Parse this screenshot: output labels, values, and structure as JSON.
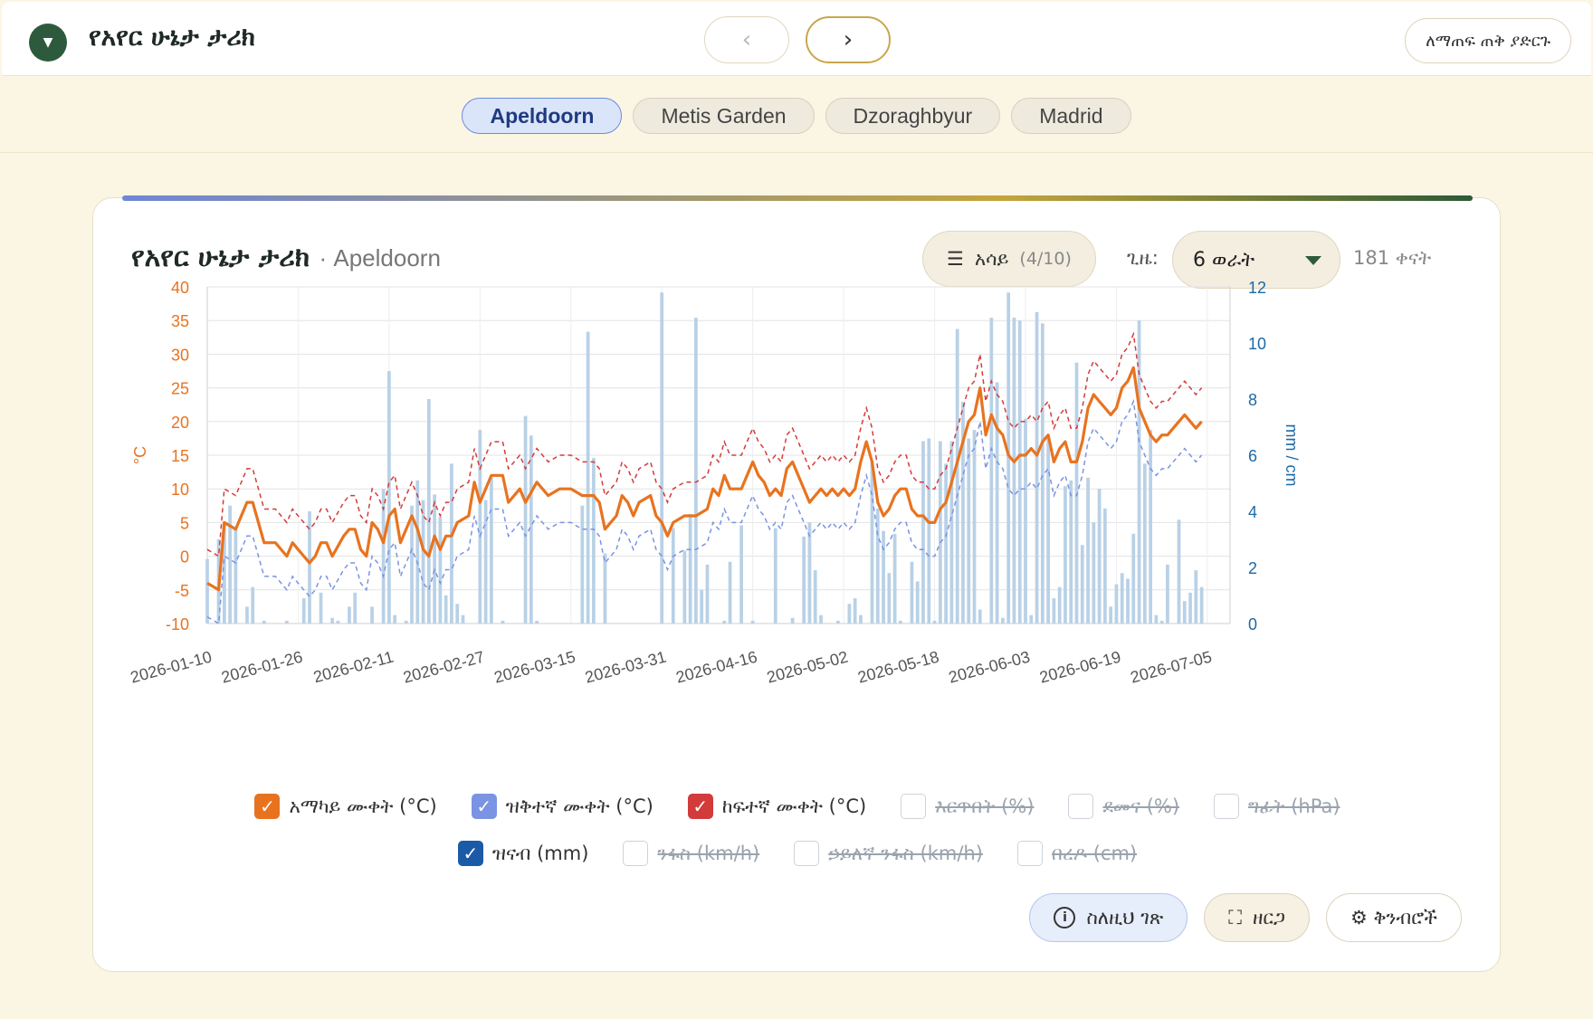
{
  "header": {
    "menu_icon": "chevron-down-icon",
    "title": "የአየር ሁኔታ ታሪክ",
    "prev_symbol": "‹",
    "next_symbol": "›",
    "close_label": "ለማጠፍ ጠቅ ያድርጉ"
  },
  "locations": [
    {
      "label": "Apeldoorn",
      "active": true
    },
    {
      "label": "Metis Garden",
      "active": false
    },
    {
      "label": "Dzoraghbyur",
      "active": false
    },
    {
      "label": "Madrid",
      "active": false
    }
  ],
  "card": {
    "title": "የአየር ሁኔታ ታሪክ",
    "subtitle": "· Apeldoorn",
    "series_button_label": "አሳይ",
    "series_count": "(4/10)",
    "time_label": "ጊዜ:",
    "time_value": "6 ወራት",
    "days_count": "181 ቀናት"
  },
  "legend": [
    {
      "label": "አማካይ ሙቀት (°C)",
      "checked": true,
      "color": "#e8731f"
    },
    {
      "label": "ዝቅተኛ ሙቀት (°C)",
      "checked": true,
      "color": "#7b93e3"
    },
    {
      "label": "ከፍተኛ ሙቀት (°C)",
      "checked": true,
      "color": "#d33b3b"
    },
    {
      "label": "እርጥበት (%)",
      "checked": false,
      "color": "#cdd3da"
    },
    {
      "label": "ደመና (%)",
      "checked": false,
      "color": "#cdd3da"
    },
    {
      "label": "ግፊት (hPa)",
      "checked": false,
      "color": "#cdd3da"
    },
    {
      "label": "ዝናብ (mm)",
      "checked": true,
      "color": "#1b5aa6"
    },
    {
      "label": "ንፋስ (km/h)",
      "checked": false,
      "color": "#cdd3da"
    },
    {
      "label": "ኃይለኛ ንፋስ (km/h)",
      "checked": false,
      "color": "#cdd3da"
    },
    {
      "label": "በረዶ (cm)",
      "checked": false,
      "color": "#cdd3da"
    }
  ],
  "actions": {
    "about_label": "ስለዚህ ገጽ",
    "expand_label": "ዘርጋ",
    "settings_label": "⚙ ቅንብሮች"
  },
  "colors": {
    "accent_green": "#2d5a3d",
    "temp_mean": "#e8731f",
    "temp_min": "#7b93e3",
    "temp_max": "#d33b3b",
    "precip": "#b9d1e6",
    "axis_left": "#e8731f",
    "axis_right": "#1b6aa8"
  },
  "chart_data": {
    "type": "line",
    "left_axis": {
      "label": "°C",
      "min": -10,
      "max": 40,
      "ticks": [
        40,
        35,
        30,
        25,
        20,
        15,
        10,
        5,
        0,
        -5,
        -10
      ]
    },
    "right_axis": {
      "label": "mm / cm",
      "min": 0,
      "max": 12,
      "ticks": [
        12,
        10,
        8,
        6,
        4,
        2,
        0
      ]
    },
    "x_tick_labels": [
      "2026-01-10",
      "2026-01-26",
      "2026-02-11",
      "2026-02-27",
      "2026-03-15",
      "2026-03-31",
      "2026-04-16",
      "2026-05-02",
      "2026-05-18",
      "2026-06-03",
      "2026-06-19",
      "2026-07-05"
    ],
    "x_start": "2026-01-10",
    "x_end": "2026-07-09",
    "days": 181,
    "series": [
      {
        "name": "አማካይ ሙቀት (°C)",
        "style": "solid",
        "keypoints": [
          [
            0,
            -4
          ],
          [
            2,
            -5
          ],
          [
            3,
            5
          ],
          [
            5,
            4
          ],
          [
            7,
            8
          ],
          [
            8,
            8
          ],
          [
            10,
            2
          ],
          [
            12,
            2
          ],
          [
            14,
            0
          ],
          [
            15,
            2
          ],
          [
            16,
            1
          ],
          [
            17,
            0
          ],
          [
            18,
            -1
          ],
          [
            19,
            0
          ],
          [
            20,
            2
          ],
          [
            21,
            2
          ],
          [
            22,
            0
          ],
          [
            24,
            3
          ],
          [
            25,
            4
          ],
          [
            26,
            4
          ],
          [
            27,
            1
          ],
          [
            28,
            0
          ],
          [
            29,
            5
          ],
          [
            30,
            4
          ],
          [
            31,
            2
          ],
          [
            32,
            6
          ],
          [
            33,
            7
          ],
          [
            34,
            2
          ],
          [
            36,
            6
          ],
          [
            37,
            4
          ],
          [
            38,
            1
          ],
          [
            39,
            0
          ],
          [
            40,
            3
          ],
          [
            41,
            1
          ],
          [
            42,
            3
          ],
          [
            43,
            3
          ],
          [
            44,
            5
          ],
          [
            46,
            6
          ],
          [
            47,
            11
          ],
          [
            48,
            8
          ],
          [
            50,
            12
          ],
          [
            52,
            12
          ],
          [
            53,
            8
          ],
          [
            55,
            10
          ],
          [
            56,
            8
          ],
          [
            58,
            11
          ],
          [
            60,
            9
          ],
          [
            62,
            10
          ],
          [
            64,
            10
          ],
          [
            66,
            9
          ],
          [
            68,
            9
          ],
          [
            69,
            8
          ],
          [
            70,
            4
          ],
          [
            71,
            5
          ],
          [
            72,
            6
          ],
          [
            73,
            9
          ],
          [
            74,
            8
          ],
          [
            75,
            6
          ],
          [
            76,
            8
          ],
          [
            78,
            9
          ],
          [
            79,
            6
          ],
          [
            80,
            5
          ],
          [
            81,
            3
          ],
          [
            82,
            5
          ],
          [
            84,
            6
          ],
          [
            86,
            6
          ],
          [
            88,
            7
          ],
          [
            89,
            10
          ],
          [
            90,
            9
          ],
          [
            91,
            12
          ],
          [
            92,
            10
          ],
          [
            94,
            10
          ],
          [
            96,
            14
          ],
          [
            97,
            12
          ],
          [
            98,
            11
          ],
          [
            99,
            9
          ],
          [
            100,
            10
          ],
          [
            101,
            9
          ],
          [
            102,
            13
          ],
          [
            103,
            14
          ],
          [
            104,
            12
          ],
          [
            105,
            10
          ],
          [
            106,
            8
          ],
          [
            107,
            9
          ],
          [
            108,
            10
          ],
          [
            109,
            9
          ],
          [
            110,
            10
          ],
          [
            111,
            9
          ],
          [
            112,
            10
          ],
          [
            113,
            9
          ],
          [
            114,
            10
          ],
          [
            115,
            14
          ],
          [
            116,
            17
          ],
          [
            117,
            14
          ],
          [
            118,
            8
          ],
          [
            119,
            6
          ],
          [
            120,
            7
          ],
          [
            121,
            9
          ],
          [
            122,
            10
          ],
          [
            123,
            10
          ],
          [
            124,
            7
          ],
          [
            125,
            6
          ],
          [
            126,
            6
          ],
          [
            127,
            5
          ],
          [
            128,
            5
          ],
          [
            129,
            7
          ],
          [
            130,
            8
          ],
          [
            131,
            11
          ],
          [
            132,
            14
          ],
          [
            133,
            17
          ],
          [
            134,
            20
          ],
          [
            135,
            21
          ],
          [
            136,
            25
          ],
          [
            137,
            18
          ],
          [
            138,
            21
          ],
          [
            139,
            19
          ],
          [
            140,
            18
          ],
          [
            141,
            15
          ],
          [
            142,
            14
          ],
          [
            143,
            15
          ],
          [
            144,
            15
          ],
          [
            145,
            16
          ],
          [
            146,
            15
          ],
          [
            147,
            17
          ],
          [
            148,
            18
          ],
          [
            149,
            14
          ],
          [
            150,
            16
          ],
          [
            151,
            17
          ],
          [
            152,
            14
          ],
          [
            153,
            14
          ],
          [
            154,
            17
          ],
          [
            155,
            22
          ],
          [
            156,
            24
          ],
          [
            157,
            23
          ],
          [
            158,
            22
          ],
          [
            159,
            21
          ],
          [
            160,
            22
          ],
          [
            161,
            25
          ],
          [
            162,
            26
          ],
          [
            163,
            28
          ],
          [
            164,
            22
          ],
          [
            165,
            20
          ],
          [
            166,
            18
          ],
          [
            167,
            17
          ],
          [
            168,
            18
          ],
          [
            169,
            18
          ],
          [
            170,
            19
          ],
          [
            171,
            20
          ],
          [
            172,
            21
          ],
          [
            173,
            20
          ],
          [
            174,
            19
          ],
          [
            175,
            20
          ]
        ]
      },
      {
        "name": "ዝቅተኛ ሙቀት (°C)",
        "style": "dashed",
        "offset_from_mean": -5
      },
      {
        "name": "ከፍተኛ ሙቀት (°C)",
        "style": "dashed",
        "offset_from_mean": 5
      },
      {
        "name": "ዝናብ (mm)",
        "style": "bar",
        "axis": "right",
        "values": [
          [
            0,
            2.3
          ],
          [
            2,
            3.0
          ],
          [
            3,
            3.6
          ],
          [
            4,
            4.2
          ],
          [
            5,
            3.4
          ],
          [
            7,
            0.6
          ],
          [
            8,
            1.3
          ],
          [
            10,
            0.1
          ],
          [
            14,
            0.1
          ],
          [
            17,
            0.9
          ],
          [
            18,
            4.0
          ],
          [
            20,
            1.1
          ],
          [
            22,
            0.2
          ],
          [
            23,
            0.1
          ],
          [
            25,
            0.6
          ],
          [
            26,
            1.1
          ],
          [
            29,
            0.6
          ],
          [
            31,
            4.8
          ],
          [
            32,
            9.0
          ],
          [
            33,
            0.3
          ],
          [
            35,
            0.1
          ],
          [
            36,
            4.2
          ],
          [
            37,
            5.1
          ],
          [
            38,
            4.4
          ],
          [
            39,
            8.0
          ],
          [
            40,
            4.6
          ],
          [
            41,
            3.8
          ],
          [
            42,
            1.0
          ],
          [
            43,
            5.7
          ],
          [
            44,
            0.7
          ],
          [
            45,
            0.3
          ],
          [
            48,
            6.9
          ],
          [
            49,
            4.4
          ],
          [
            50,
            5.2
          ],
          [
            52,
            0.1
          ],
          [
            56,
            7.4
          ],
          [
            57,
            6.7
          ],
          [
            58,
            0.1
          ],
          [
            66,
            4.2
          ],
          [
            67,
            10.4
          ],
          [
            68,
            5.9
          ],
          [
            70,
            2.5
          ],
          [
            80,
            11.8
          ],
          [
            82,
            3.4
          ],
          [
            84,
            2.6
          ],
          [
            85,
            3.9
          ],
          [
            86,
            10.9
          ],
          [
            87,
            1.2
          ],
          [
            88,
            2.1
          ],
          [
            91,
            0.1
          ],
          [
            92,
            2.2
          ],
          [
            94,
            3.5
          ],
          [
            96,
            0.1
          ],
          [
            100,
            3.4
          ],
          [
            103,
            0.2
          ],
          [
            105,
            3.1
          ],
          [
            106,
            3.6
          ],
          [
            107,
            1.9
          ],
          [
            108,
            0.3
          ],
          [
            111,
            0.1
          ],
          [
            113,
            0.7
          ],
          [
            114,
            0.9
          ],
          [
            115,
            0.3
          ],
          [
            117,
            5.8
          ],
          [
            118,
            4.1
          ],
          [
            119,
            3.3
          ],
          [
            120,
            1.8
          ],
          [
            121,
            3.2
          ],
          [
            122,
            0.1
          ],
          [
            124,
            2.2
          ],
          [
            125,
            1.5
          ],
          [
            126,
            6.5
          ],
          [
            127,
            6.6
          ],
          [
            128,
            0.1
          ],
          [
            129,
            6.5
          ],
          [
            130,
            5.7
          ],
          [
            131,
            6.5
          ],
          [
            132,
            10.5
          ],
          [
            133,
            7.9
          ],
          [
            134,
            6.6
          ],
          [
            135,
            6.9
          ],
          [
            136,
            0.5
          ],
          [
            138,
            10.9
          ],
          [
            139,
            8.6
          ],
          [
            140,
            0.2
          ],
          [
            141,
            11.8
          ],
          [
            142,
            10.9
          ],
          [
            143,
            10.8
          ],
          [
            144,
            7.3
          ],
          [
            145,
            0.3
          ],
          [
            146,
            11.1
          ],
          [
            147,
            10.7
          ],
          [
            148,
            6.7
          ],
          [
            149,
            0.9
          ],
          [
            150,
            1.3
          ],
          [
            151,
            4.9
          ],
          [
            152,
            5.1
          ],
          [
            153,
            9.3
          ],
          [
            154,
            2.8
          ],
          [
            155,
            5.2
          ],
          [
            156,
            3.6
          ],
          [
            157,
            4.8
          ],
          [
            158,
            4.1
          ],
          [
            159,
            0.6
          ],
          [
            160,
            1.4
          ],
          [
            161,
            1.8
          ],
          [
            162,
            1.6
          ],
          [
            163,
            3.2
          ],
          [
            164,
            10.8
          ],
          [
            165,
            5.7
          ],
          [
            166,
            6.9
          ],
          [
            167,
            0.3
          ],
          [
            168,
            0.1
          ],
          [
            169,
            2.1
          ],
          [
            171,
            3.7
          ],
          [
            172,
            0.8
          ],
          [
            173,
            1.1
          ],
          [
            174,
            1.9
          ],
          [
            175,
            1.3
          ]
        ]
      }
    ]
  }
}
